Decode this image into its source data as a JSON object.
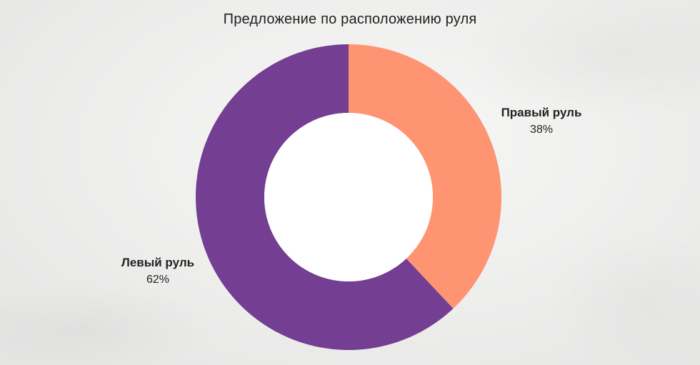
{
  "chart_data": {
    "type": "pie",
    "variant": "donut",
    "title": "Предложение по расположению руля",
    "slices": [
      {
        "name": "Правый руль",
        "value": 38,
        "label": "38%",
        "color": "#ff9473"
      },
      {
        "name": "Левый руль",
        "value": 62,
        "label": "62%",
        "color": "#743e93"
      }
    ],
    "start_angle_deg": 0,
    "direction": "clockwise",
    "legend": "none",
    "background_color": "#ececeb"
  }
}
